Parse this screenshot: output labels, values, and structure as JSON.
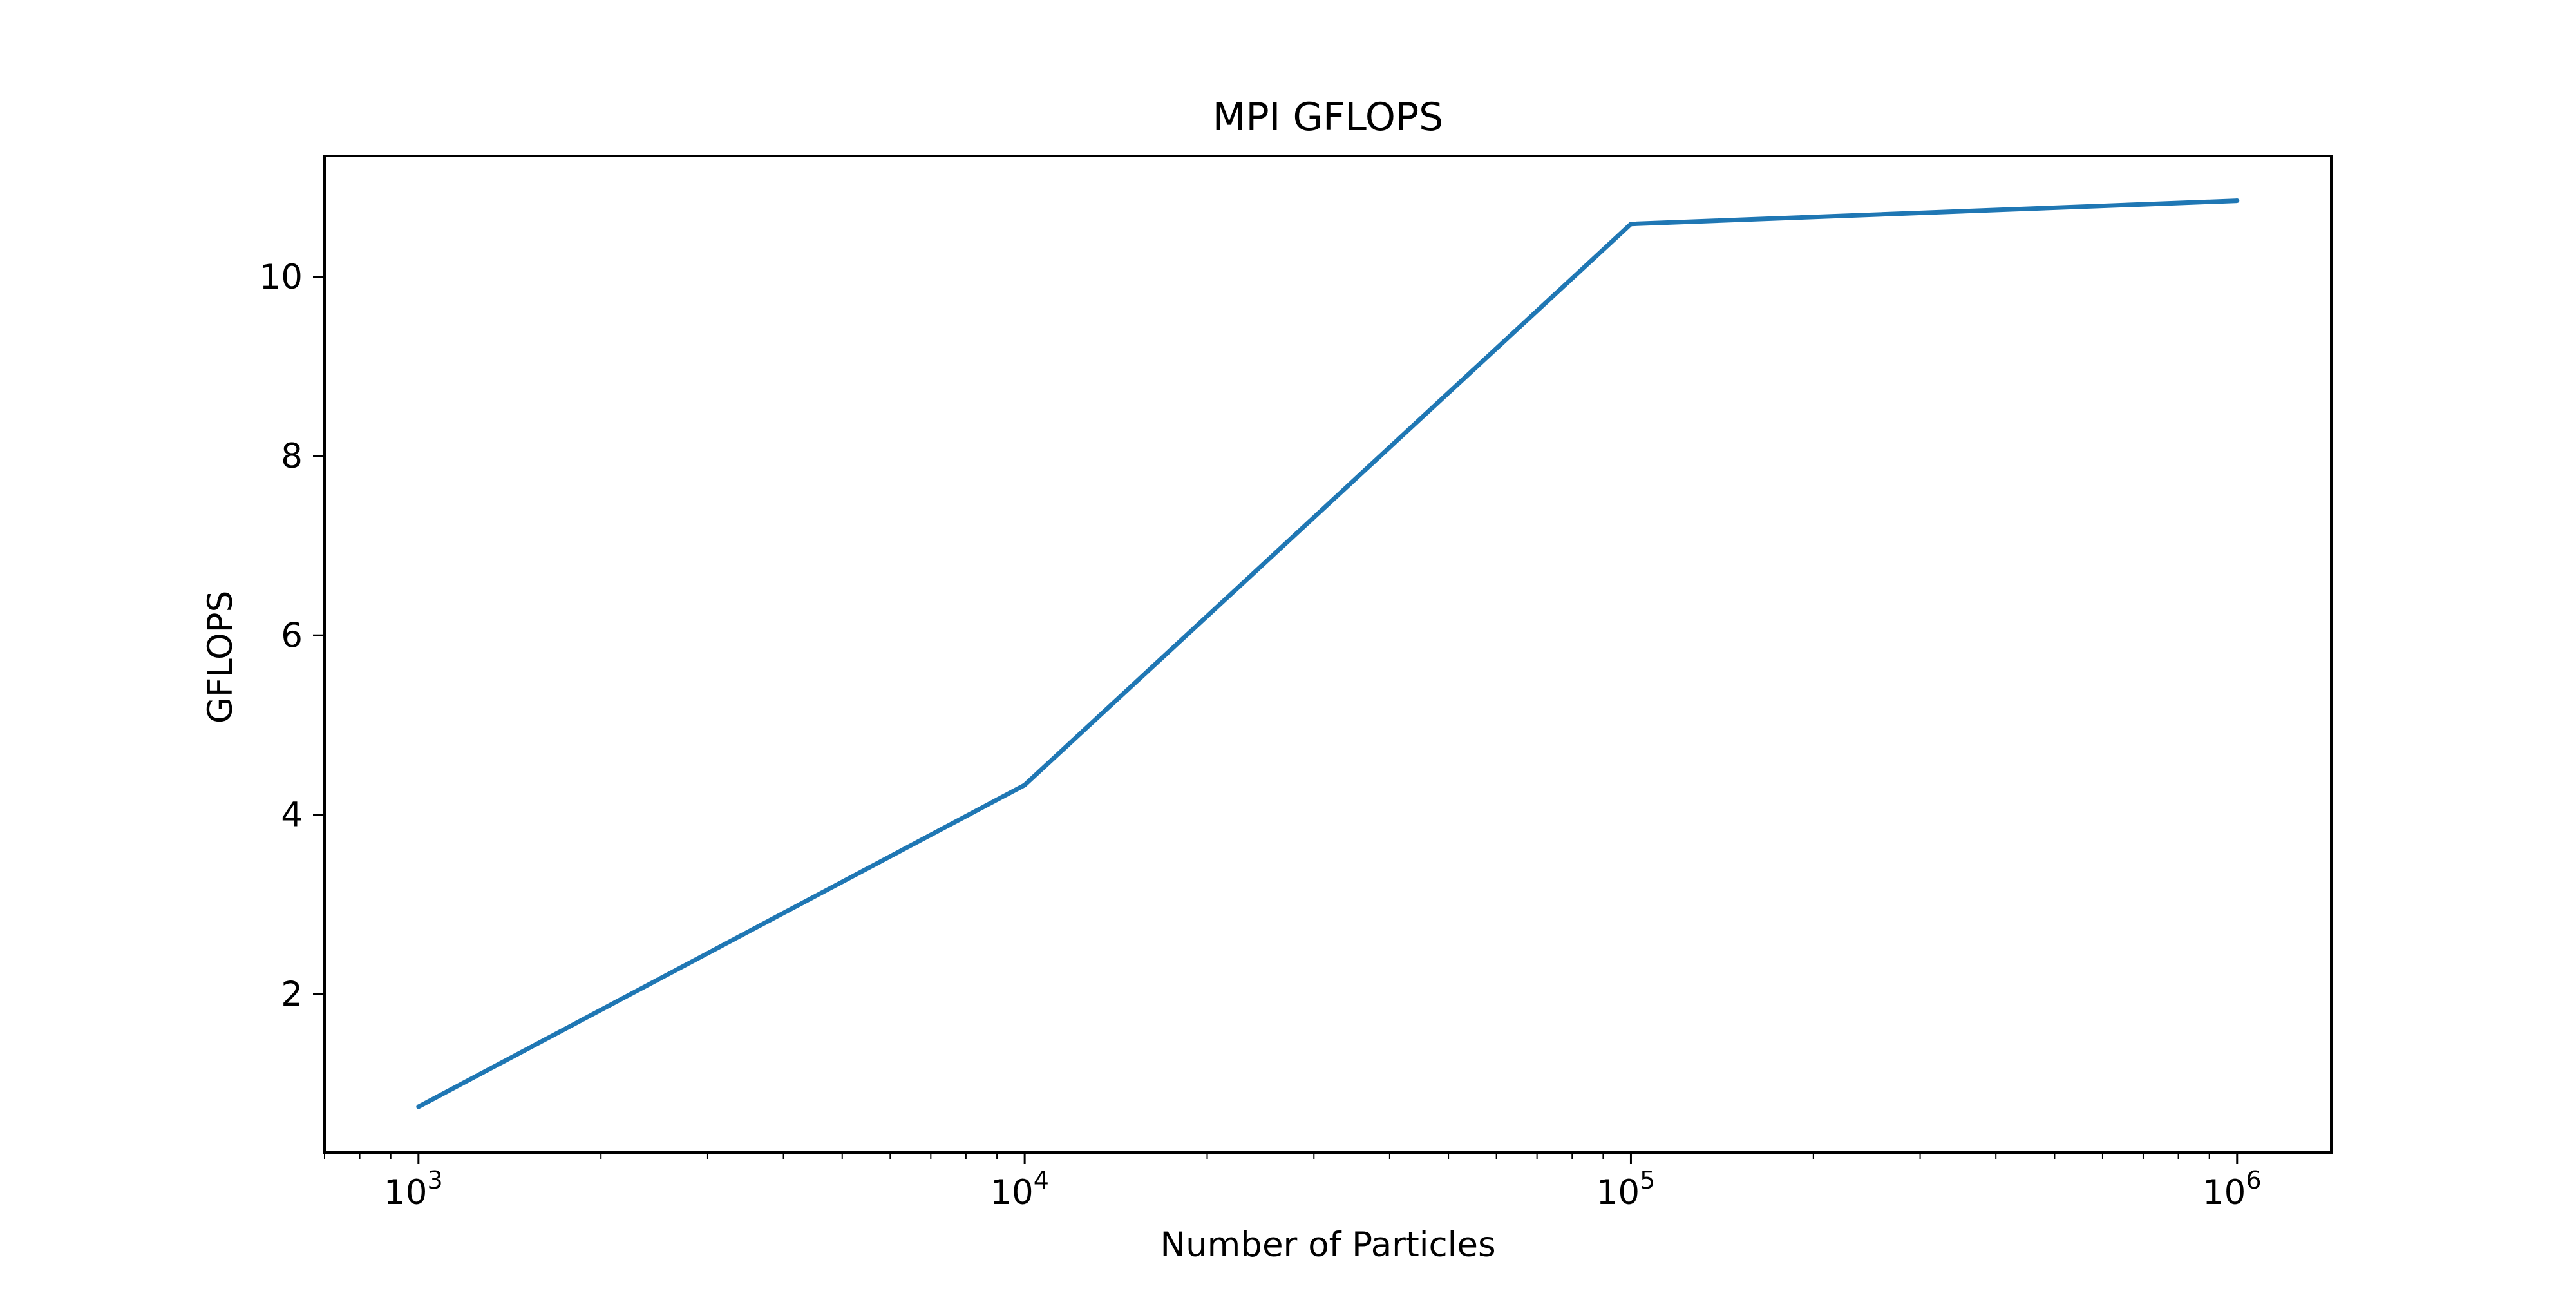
{
  "chart_data": {
    "type": "line",
    "title": "MPI GFLOPS",
    "xlabel": "Number of Particles",
    "ylabel": "GFLOPS",
    "xscale": "log",
    "xlim": [
      700,
      1430000
    ],
    "ylim": [
      0.23,
      11.35
    ],
    "grid": false,
    "legend": "none",
    "x_ticks": [
      {
        "value": 1000,
        "base": "10",
        "exp": "3"
      },
      {
        "value": 10000,
        "base": "10",
        "exp": "4"
      },
      {
        "value": 100000,
        "base": "10",
        "exp": "5"
      },
      {
        "value": 1000000,
        "base": "10",
        "exp": "6"
      }
    ],
    "y_ticks": [
      2,
      4,
      6,
      8,
      10
    ],
    "series": [
      {
        "color": "#1f77b4",
        "x": [
          1000,
          10000,
          100000,
          1000000
        ],
        "y": [
          0.74,
          4.33,
          10.59,
          10.85
        ]
      }
    ]
  }
}
